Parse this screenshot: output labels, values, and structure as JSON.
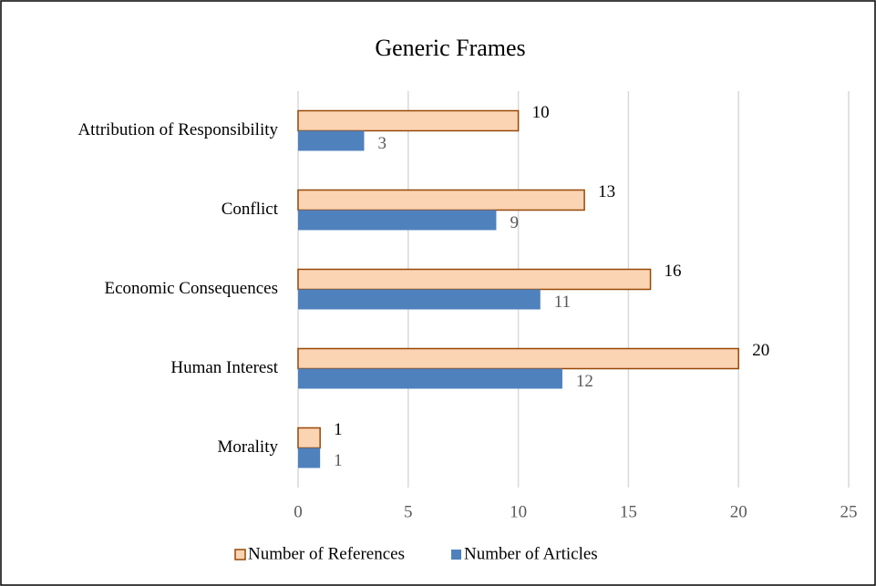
{
  "chart_data": {
    "type": "hbar",
    "title": "Generic Frames",
    "categories": [
      "Attribution of Responsibility",
      "Conflict",
      "Economic Consequences",
      "Human Interest",
      "Morality"
    ],
    "series": [
      {
        "name": "Number of References",
        "color": "#fbd4b4",
        "stroke": "#974806",
        "values": [
          10,
          13,
          16,
          20,
          1
        ]
      },
      {
        "name": "Number of Articles",
        "color": "#4f81bd",
        "values": [
          3,
          9,
          11,
          12,
          1
        ]
      }
    ],
    "xlim": [
      0,
      25
    ],
    "xticks": [
      0,
      5,
      10,
      15,
      20,
      25
    ],
    "grid": true,
    "legend": "bottom"
  }
}
